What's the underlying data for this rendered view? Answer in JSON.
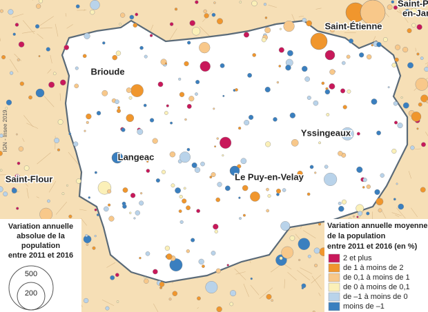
{
  "map": {
    "credit": "IGN - Insee 2019",
    "cities": [
      {
        "label": "Saint-Étienne"
      },
      {
        "label": "Saint-P"
      },
      {
        "label": "en-Jar"
      },
      {
        "label": "Brioude"
      },
      {
        "label": "Langeac"
      },
      {
        "label": "Saint-Flour"
      },
      {
        "label": "Le Puy-en-Velay"
      },
      {
        "label": "Yssingeaux"
      }
    ],
    "size_legend": {
      "title_lines": [
        "Variation annuelle",
        "absolue de la",
        "population",
        "entre 2011 et 2016"
      ],
      "sizes": [
        "500",
        "200"
      ]
    },
    "color_legend": {
      "title_lines": [
        "Variation annuelle moyenne",
        "de la population",
        "entre 2011 et 2016  (en %)"
      ],
      "items": [
        {
          "label": "2 et plus",
          "color": "#c8185a"
        },
        {
          "label": "de 1 à moins de 2",
          "color": "#f0962d"
        },
        {
          "label": "de 0,1 à moins de 1",
          "color": "#f8c88a"
        },
        {
          "label": "de 0 à moins de 0,1",
          "color": "#fbf0b8"
        },
        {
          "label": "de –1 à moins de 0",
          "color": "#b9d3ea"
        },
        {
          "label": "moins de –1",
          "color": "#3a7fbf"
        }
      ]
    }
  }
}
